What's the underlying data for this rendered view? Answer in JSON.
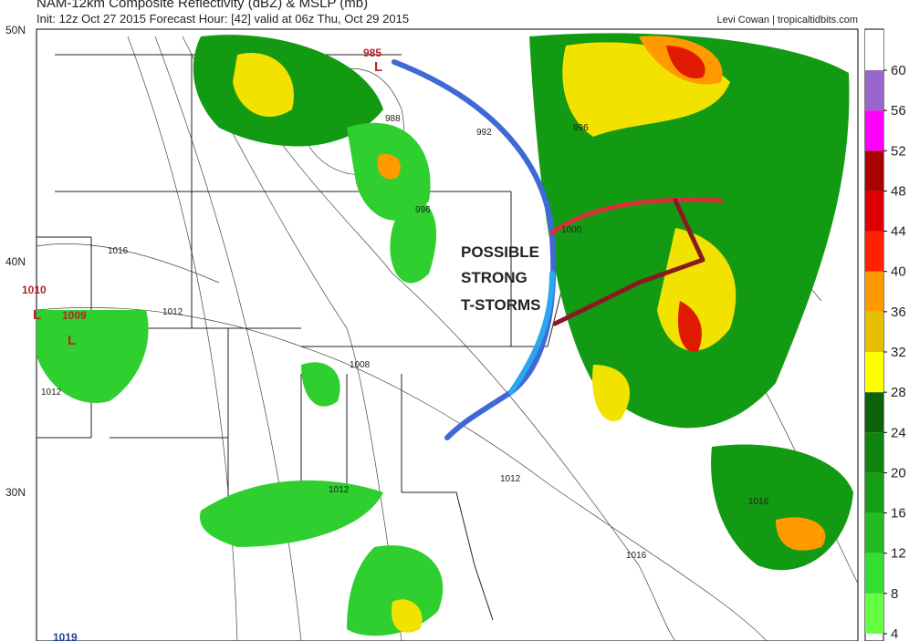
{
  "header": {
    "title": "NAM-12km Composite Reflectivity (dBZ) & MSLP (mb)",
    "subtitle": "Init: 12z Oct 27 2015   Forecast Hour: [42]   valid at 06z Thu, Oct 29 2015",
    "credit": "Levi Cowan | tropicaltidbits.com"
  },
  "map": {
    "lat_labels": [
      "50N",
      "40N",
      "30N"
    ],
    "pressure_labels": [
      "985",
      "988",
      "992",
      "996",
      "996",
      "1000",
      "1008",
      "1012",
      "1012",
      "1012",
      "1012",
      "1016",
      "1016",
      "1016",
      "1010",
      "1009",
      "1019"
    ],
    "annotation": "POSSIBLE STRONG T-STORMS"
  },
  "colorbar": {
    "ticks": [
      4,
      8,
      12,
      16,
      20,
      24,
      28,
      32,
      36,
      40,
      44,
      48,
      52,
      56,
      60
    ],
    "colors": [
      "#66ff44",
      "#33dd33",
      "#22bb22",
      "#169e16",
      "#0e840e",
      "#0a620a",
      "#ffff00",
      "#e6c000",
      "#ff9900",
      "#ff2200",
      "#dd0000",
      "#aa0000",
      "#ff00ff",
      "#9966cc",
      "#ffffff"
    ]
  }
}
